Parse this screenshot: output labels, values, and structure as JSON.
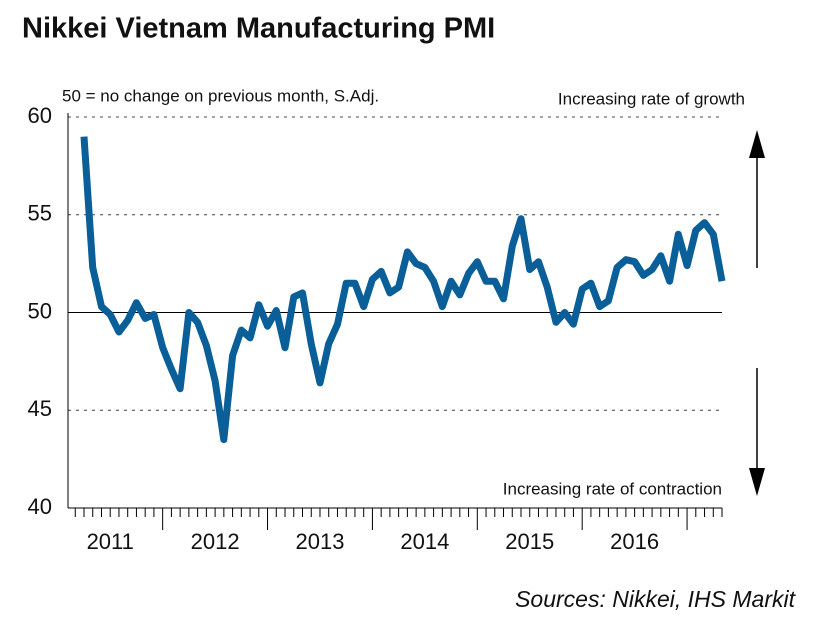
{
  "chart_data": {
    "type": "line",
    "title": "Nikkei Vietnam Manufacturing PMI",
    "note": "50 = no change on previous month, S.Adj.",
    "top_annotation": "Increasing rate of growth",
    "bottom_annotation": "Increasing rate of contraction",
    "source": "Sources: Nikkei, IHS Markit",
    "year_labels": [
      "2011",
      "2012",
      "2013",
      "2014",
      "2015",
      "2016"
    ],
    "categories": [
      null,
      null,
      null,
      null,
      null,
      null,
      null,
      null,
      null,
      null,
      null,
      null,
      null,
      null,
      null,
      null,
      null,
      null,
      null,
      null,
      null,
      null,
      null,
      null,
      null,
      null,
      null,
      null,
      null,
      null,
      null,
      null,
      null,
      null,
      null,
      null,
      null,
      null,
      null,
      null,
      null,
      null,
      null,
      null,
      null,
      null,
      null,
      null,
      null,
      null,
      null,
      null,
      null,
      null,
      null,
      null,
      null,
      null,
      null,
      null,
      null,
      null,
      null,
      null,
      null,
      null,
      null,
      null,
      null,
      null,
      null,
      null,
      null,
      null
    ],
    "series": [
      {
        "name": "PMI",
        "color": "#0a5f99",
        "values": [
          59.0,
          52.3,
          50.3,
          49.9,
          49.0,
          49.6,
          50.5,
          49.7,
          49.9,
          48.2,
          47.1,
          46.1,
          50.0,
          49.5,
          48.3,
          46.5,
          43.5,
          47.8,
          49.1,
          48.7,
          50.4,
          49.3,
          50.1,
          48.2,
          50.8,
          51.0,
          48.4,
          46.4,
          48.4,
          49.4,
          51.5,
          51.5,
          50.3,
          51.7,
          52.1,
          51.0,
          51.3,
          53.1,
          52.5,
          52.3,
          51.6,
          50.3,
          51.6,
          50.9,
          52.0,
          52.6,
          51.6,
          51.6,
          50.7,
          53.4,
          54.8,
          52.2,
          52.6,
          51.3,
          49.5,
          50.0,
          49.4,
          51.2,
          51.5,
          50.3,
          50.6,
          52.3,
          52.7,
          52.6,
          51.9,
          52.2,
          52.9,
          51.6,
          54.0,
          52.4,
          54.2,
          54.6,
          54.0,
          51.6
        ]
      }
    ],
    "ylim": [
      40,
      60
    ],
    "yticks": [
      40,
      45,
      50,
      55,
      60
    ],
    "baseline": 50,
    "grid": true
  }
}
